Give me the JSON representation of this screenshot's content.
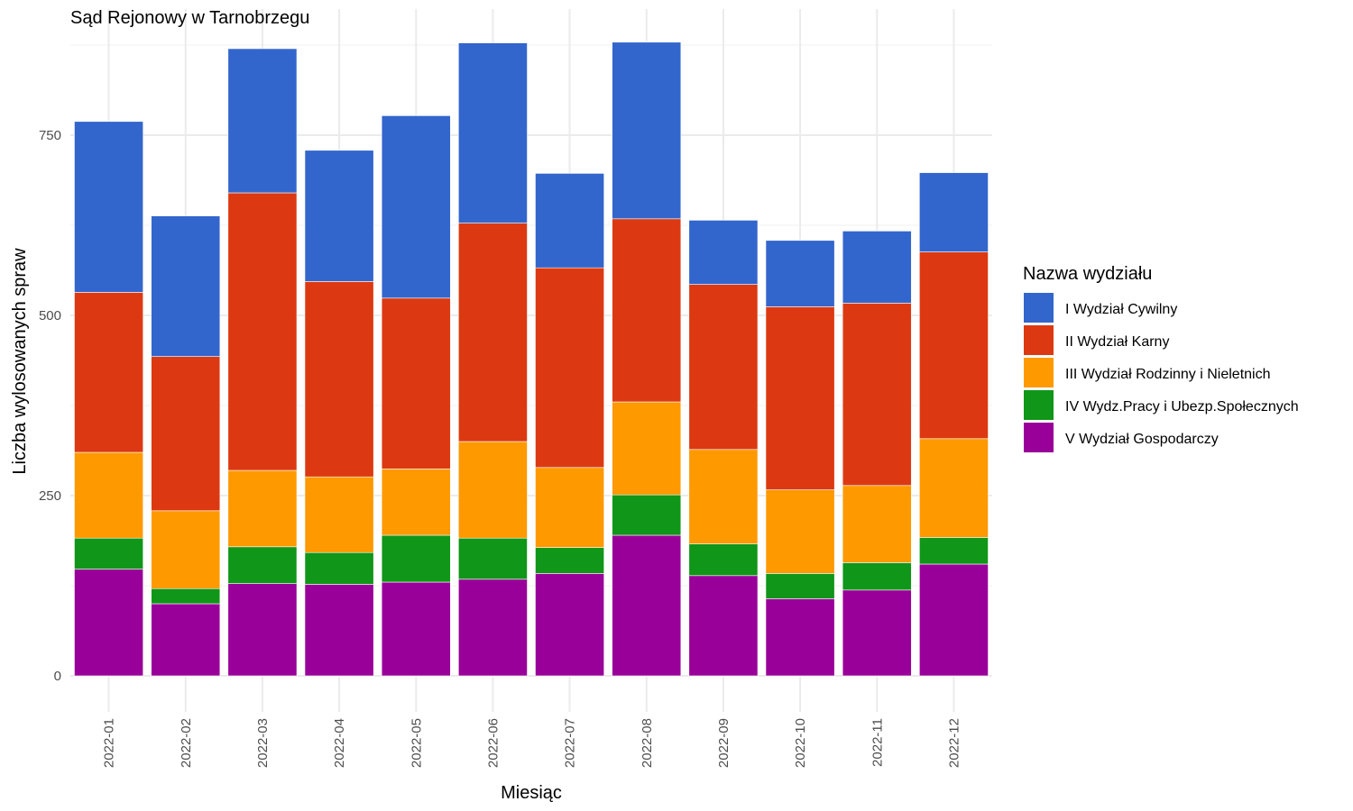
{
  "chart_data": {
    "type": "bar",
    "stacked": true,
    "title": "Sąd Rejonowy w Tarnobrzegu",
    "xlabel": "Miesiąc",
    "ylabel": "Liczba wylosowanych spraw",
    "ylim": [
      0,
      880
    ],
    "yticks": [
      0,
      250,
      500,
      750
    ],
    "grid": true,
    "legend_title": "Nazwa wydziału",
    "legend_position": "right",
    "categories": [
      "2022-01",
      "2022-02",
      "2022-03",
      "2022-04",
      "2022-05",
      "2022-06",
      "2022-07",
      "2022-08",
      "2022-09",
      "2022-10",
      "2022-11",
      "2022-12"
    ],
    "series": [
      {
        "name": "V Wydział Gospodarczy",
        "color": "#990099",
        "values": [
          148,
          100,
          128,
          127,
          130,
          134,
          142,
          195,
          139,
          107,
          119,
          155
        ]
      },
      {
        "name": "IV Wydz.Pracy i Ubezp.Społecznych",
        "color": "#109618",
        "values": [
          43,
          21,
          51,
          44,
          65,
          57,
          36,
          56,
          44,
          35,
          38,
          37
        ]
      },
      {
        "name": "III Wydział Rodzinny i Nieletnich",
        "color": "#FF9900",
        "values": [
          119,
          108,
          106,
          105,
          92,
          134,
          111,
          129,
          131,
          116,
          107,
          137
        ]
      },
      {
        "name": "II Wydział Karny",
        "color": "#DC3912",
        "values": [
          222,
          214,
          385,
          271,
          237,
          303,
          277,
          254,
          229,
          254,
          253,
          259
        ]
      },
      {
        "name": "I Wydział Cywilny",
        "color": "#3366CC",
        "values": [
          237,
          195,
          200,
          182,
          253,
          250,
          131,
          245,
          89,
          92,
          100,
          110
        ]
      }
    ],
    "legend_order": [
      "I Wydział Cywilny",
      "II Wydział Karny",
      "III Wydział Rodzinny i Nieletnich",
      "IV Wydz.Pracy i Ubezp.Społecznych",
      "V Wydział Gospodarczy"
    ]
  }
}
